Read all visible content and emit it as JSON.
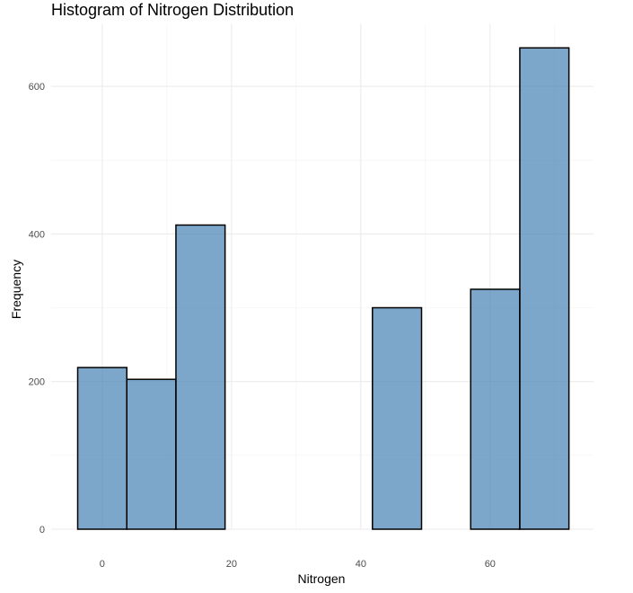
{
  "chart_data": {
    "type": "bar",
    "title": "Histogram of Nitrogen Distribution",
    "xlabel": "Nitrogen",
    "ylabel": "Frequency",
    "xlim": [
      -7.9,
      76.0
    ],
    "ylim": [
      0,
      684
    ],
    "x_ticks": [
      0,
      20,
      40,
      60
    ],
    "y_ticks": [
      0,
      200,
      400,
      600
    ],
    "grid": true,
    "bar_color": "#4682B4",
    "bar_outline": "#000000",
    "bins": [
      {
        "x0": -3.8,
        "x1": 3.8,
        "count": 219
      },
      {
        "x0": 3.8,
        "x1": 11.4,
        "count": 203
      },
      {
        "x0": 11.4,
        "x1": 19.0,
        "count": 412
      },
      {
        "x0": 19.0,
        "x1": 26.6,
        "count": 0
      },
      {
        "x0": 26.6,
        "x1": 34.2,
        "count": 0
      },
      {
        "x0": 34.2,
        "x1": 41.8,
        "count": 0
      },
      {
        "x0": 41.8,
        "x1": 49.4,
        "count": 300
      },
      {
        "x0": 49.4,
        "x1": 57.0,
        "count": 0
      },
      {
        "x0": 57.0,
        "x1": 64.6,
        "count": 325
      },
      {
        "x0": 64.6,
        "x1": 72.2,
        "count": 652
      }
    ]
  }
}
